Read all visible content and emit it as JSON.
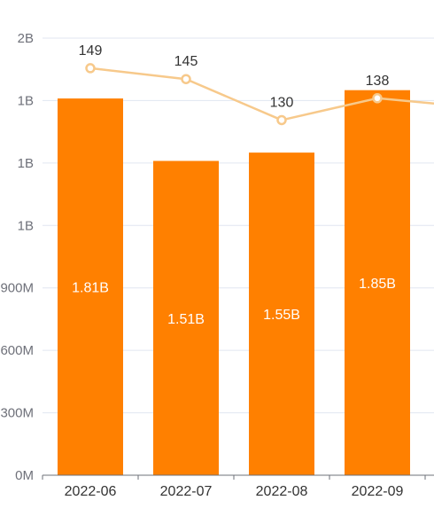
{
  "chart_data": {
    "type": "bar",
    "categories": [
      "2022-06",
      "2022-07",
      "2022-08",
      "2022-09"
    ],
    "y_ticks": [
      "0M",
      "300M",
      "600M",
      "900M",
      "1B",
      "1B",
      "1B",
      "2B"
    ],
    "ylim": [
      0,
      2100000000
    ],
    "grid": true,
    "series": [
      {
        "type": "bar",
        "values": [
          1810000000,
          1510000000,
          1550000000,
          1850000000
        ],
        "labels": [
          "1.81B",
          "1.51B",
          "1.55B",
          "1.85B"
        ],
        "color": "#ff8000"
      },
      {
        "type": "line",
        "values": [
          149,
          145,
          130,
          138
        ],
        "labels": [
          "149",
          "145",
          "130",
          "138"
        ],
        "ylim": [
          0,
          160
        ],
        "color": "#f7c98b",
        "continues_right": true
      }
    ]
  }
}
